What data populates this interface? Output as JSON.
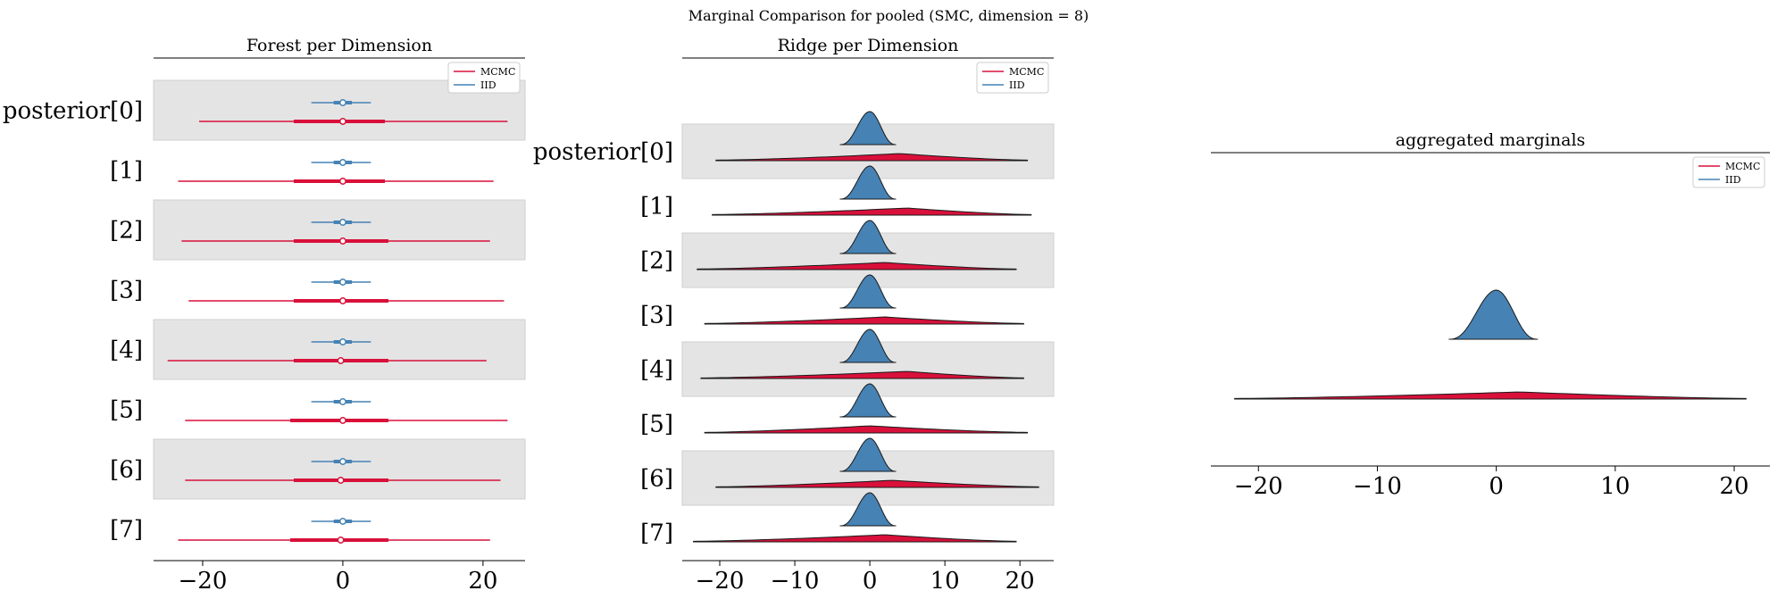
{
  "figure": {
    "suptitle": "Marginal Comparison for pooled (SMC, dimension = 8)"
  },
  "colors": {
    "mcmc": "#d8103a",
    "iid": "#4682b4",
    "band": "#e4e4e4",
    "band_edge": "#cfcfcf"
  },
  "chart_data": [
    {
      "type": "forest",
      "title": "Forest per Dimension",
      "xlabel": "",
      "ylabel": "",
      "legend": {
        "placement": "top-right",
        "entries": [
          "MCMC",
          "IID"
        ]
      },
      "xlim": [
        -27,
        26
      ],
      "xticks": [
        -20,
        0,
        20
      ],
      "xticklabels": [
        "−20",
        "0",
        "20"
      ],
      "grid": false,
      "categories": [
        "posterior[0]",
        "[1]",
        "[2]",
        "[3]",
        "[4]",
        "[5]",
        "[6]",
        "[7]"
      ],
      "series": [
        {
          "name": "MCMC",
          "median": [
            0.0,
            0.0,
            0.0,
            0.0,
            -0.3,
            0.0,
            -0.3,
            -0.3
          ],
          "hdi_50": [
            [
              -7,
              6
            ],
            [
              -7,
              6
            ],
            [
              -7,
              6.5
            ],
            [
              -7,
              6.5
            ],
            [
              -7,
              6.5
            ],
            [
              -7.5,
              6.5
            ],
            [
              -7,
              6.5
            ],
            [
              -7.5,
              6.5
            ]
          ],
          "hdi_94": [
            [
              -20.5,
              23.5
            ],
            [
              -23.5,
              21.5
            ],
            [
              -23,
              21
            ],
            [
              -22,
              23
            ],
            [
              -25,
              20.5
            ],
            [
              -22.5,
              23.5
            ],
            [
              -22.5,
              22.5
            ],
            [
              -23.5,
              21
            ]
          ]
        },
        {
          "name": "IID",
          "median": [
            0.0,
            0.0,
            0.0,
            0.0,
            0.0,
            0.0,
            0.0,
            0.0
          ],
          "hdi_50": [
            [
              -1.3,
              1.3
            ],
            [
              -1.3,
              1.3
            ],
            [
              -1.3,
              1.3
            ],
            [
              -1.3,
              1.3
            ],
            [
              -1.3,
              1.3
            ],
            [
              -1.3,
              1.3
            ],
            [
              -1.3,
              1.3
            ],
            [
              -1.3,
              1.3
            ]
          ],
          "hdi_94": [
            [
              -4.5,
              4
            ],
            [
              -4.5,
              4
            ],
            [
              -4.5,
              4
            ],
            [
              -4.5,
              4
            ],
            [
              -4.5,
              4
            ],
            [
              -4.5,
              4
            ],
            [
              -4.5,
              4
            ],
            [
              -4.5,
              4
            ]
          ]
        }
      ]
    },
    {
      "type": "ridge",
      "title": "Ridge per Dimension",
      "xlabel": "",
      "ylabel": "",
      "legend": {
        "placement": "top-right",
        "entries": [
          "MCMC",
          "IID"
        ]
      },
      "xlim": [
        -25,
        24.5
      ],
      "xticks": [
        -20,
        -10,
        0,
        10,
        20
      ],
      "xticklabels": [
        "−20",
        "−10",
        "0",
        "10",
        "20"
      ],
      "grid": false,
      "categories": [
        "posterior[0]",
        "[1]",
        "[2]",
        "[3]",
        "[4]",
        "[5]",
        "[6]",
        "[7]"
      ],
      "series": [
        {
          "name": "MCMC",
          "range": [
            [
              -20.5,
              21
            ],
            [
              -21,
              21.5
            ],
            [
              -23,
              19.5
            ],
            [
              -22,
              20.5
            ],
            [
              -22.5,
              20.5
            ],
            [
              -22,
              21
            ],
            [
              -20.5,
              22.5
            ],
            [
              -23.5,
              19.5
            ]
          ],
          "peak": [
            4,
            5,
            2,
            2,
            5,
            0,
            3,
            2
          ]
        },
        {
          "name": "IID",
          "range": [
            [
              -4,
              3.5
            ],
            [
              -4,
              3.5
            ],
            [
              -4,
              3.5
            ],
            [
              -4,
              3.5
            ],
            [
              -4,
              3.5
            ],
            [
              -4,
              3.5
            ],
            [
              -4,
              3.5
            ],
            [
              -4,
              3.5
            ]
          ],
          "peak": [
            0,
            0,
            0,
            0,
            0,
            0,
            0,
            0
          ]
        }
      ]
    },
    {
      "type": "ridge",
      "title": "aggregated marginals",
      "xlabel": "",
      "ylabel": "",
      "legend": {
        "placement": "top-right",
        "entries": [
          "MCMC",
          "IID"
        ]
      },
      "xlim": [
        -24,
        23
      ],
      "xticks": [
        -20,
        -10,
        0,
        10,
        20
      ],
      "xticklabels": [
        "−20",
        "−10",
        "0",
        "10",
        "20"
      ],
      "grid": false,
      "series": [
        {
          "name": "MCMC",
          "range": [
            -22,
            21
          ],
          "peak": 2
        },
        {
          "name": "IID",
          "range": [
            -4,
            3.5
          ],
          "peak": 0
        }
      ]
    }
  ]
}
